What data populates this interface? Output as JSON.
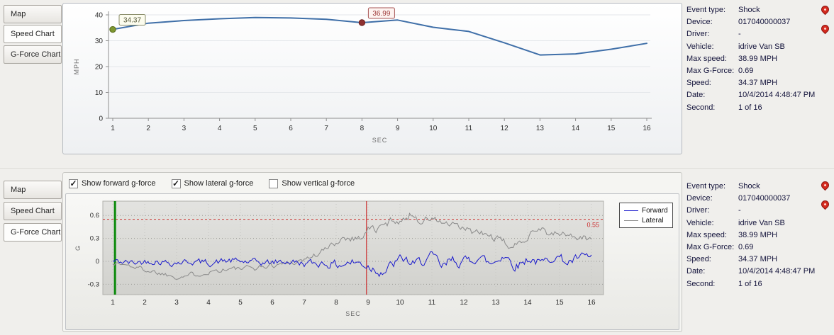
{
  "tabs": {
    "map": "Map",
    "speed": "Speed Chart",
    "gforce": "G-Force Chart"
  },
  "icons": {
    "event_marker": "red-map-pin"
  },
  "checkboxes": [
    {
      "label": "Show forward g-force",
      "checked": true
    },
    {
      "label": "Show lateral g-force",
      "checked": true
    },
    {
      "label": "Show vertical g-force",
      "checked": false
    }
  ],
  "info": {
    "rows": [
      {
        "label": "Event type:",
        "value": "Shock"
      },
      {
        "label": "Device:",
        "value": "017040000037"
      },
      {
        "label": "Driver:",
        "value": "-"
      },
      {
        "label": "Vehicle:",
        "value": "idrive Van SB"
      },
      {
        "label": "Max speed:",
        "value": "38.99 MPH"
      },
      {
        "label": "Max G-Force:",
        "value": "0.69"
      },
      {
        "label": "Speed:",
        "value": "34.37 MPH"
      },
      {
        "label": "Date:",
        "value": "10/4/2014 4:48:47 PM"
      },
      {
        "label": "Second:",
        "value": "1 of 16"
      }
    ]
  },
  "chart_data": [
    {
      "type": "line",
      "title": "Speed Chart",
      "xlabel": "SEC",
      "ylabel": "MPH",
      "x": [
        1,
        2,
        3,
        4,
        5,
        6,
        7,
        8,
        9,
        10,
        11,
        12,
        13,
        14,
        15,
        16
      ],
      "values": [
        34.37,
        36.8,
        37.8,
        38.5,
        38.99,
        38.8,
        38.3,
        36.99,
        38.0,
        35.2,
        33.6,
        29.2,
        24.5,
        24.9,
        26.7,
        29.0
      ],
      "ylim": [
        0,
        40
      ],
      "yticks": [
        0,
        10,
        20,
        30,
        40
      ],
      "line_color": "#3f6fa8",
      "grid": "faint-horizontal",
      "markers": [
        {
          "x": 1,
          "y": 34.37,
          "label": "34.37",
          "dot": "#7d9630",
          "ring": "#5a6e1e",
          "box_bg": "#fcfcee",
          "box_border": "#8a8d6a",
          "text": "#55583a"
        },
        {
          "x": 8,
          "y": 36.99,
          "label": "36.99",
          "dot": "#8e3030",
          "ring": "#6a1f1f",
          "box_bg": "#fdf3f0",
          "box_border": "#a85555",
          "text": "#9c3535"
        }
      ]
    },
    {
      "type": "line",
      "title": "G-Force Chart",
      "xlabel": "SEC",
      "ylabel": "G",
      "xticks": [
        1,
        2,
        3,
        4,
        5,
        6,
        7,
        8,
        9,
        10,
        11,
        12,
        13,
        14,
        15,
        16
      ],
      "ylim": [
        -0.45,
        0.8
      ],
      "yticks": [
        -0.3,
        0,
        0.3,
        0.6
      ],
      "grid": "dotted",
      "legend_position": "right",
      "threshold": {
        "value": 0.55,
        "label": "0.55",
        "color": "#cc3333"
      },
      "event_lines": [
        {
          "x": 1.07,
          "color": "#0b8a0b",
          "width": 3
        },
        {
          "x": 8.95,
          "color": "#cc3333",
          "width": 1.2
        }
      ],
      "series": [
        {
          "name": "Forward",
          "color": "#1a1acc",
          "seed": 42,
          "envelope": [
            [
              1,
              0
            ],
            [
              1.6,
              -0.02
            ],
            [
              2.2,
              0.01
            ],
            [
              2.8,
              -0.02
            ],
            [
              3.4,
              0
            ],
            [
              4,
              -0.02
            ],
            [
              4.6,
              0.01
            ],
            [
              5.2,
              -0.01
            ],
            [
              5.8,
              -0.02
            ],
            [
              6.4,
              0
            ],
            [
              7,
              -0.03
            ],
            [
              7.6,
              -0.02
            ],
            [
              8,
              -0.05
            ],
            [
              8.4,
              -0.01
            ],
            [
              8.8,
              -0.03
            ],
            [
              9.2,
              -0.1
            ],
            [
              9.5,
              -0.13
            ],
            [
              9.8,
              -0.02
            ],
            [
              10.1,
              0.04
            ],
            [
              10.4,
              -0.07
            ],
            [
              10.7,
              0.03
            ],
            [
              11,
              0.05
            ],
            [
              11.3,
              -0.1
            ],
            [
              11.6,
              0.03
            ],
            [
              12,
              -0.02
            ],
            [
              12.4,
              0.08
            ],
            [
              12.8,
              -0.05
            ],
            [
              13.2,
              0.1
            ],
            [
              13.6,
              -0.07
            ],
            [
              14,
              0.05
            ],
            [
              14.4,
              -0.04
            ],
            [
              14.8,
              0.09
            ],
            [
              15.2,
              -0.02
            ],
            [
              15.6,
              0.05
            ],
            [
              16,
              0.06
            ]
          ],
          "noise": [
            [
              1,
              0.045
            ],
            [
              7,
              0.05
            ],
            [
              9,
              0.08
            ],
            [
              12,
              0.08
            ],
            [
              14,
              0.07
            ],
            [
              16,
              0.06
            ]
          ]
        },
        {
          "name": "Lateral",
          "color": "#8a8a8a",
          "seed": 1337,
          "envelope": [
            [
              1,
              -0.02
            ],
            [
              1.5,
              -0.06
            ],
            [
              2,
              -0.11
            ],
            [
              2.5,
              -0.16
            ],
            [
              3,
              -0.2
            ],
            [
              3.5,
              -0.17
            ],
            [
              4,
              -0.13
            ],
            [
              4.5,
              -0.1
            ],
            [
              5,
              -0.1
            ],
            [
              5.5,
              -0.08
            ],
            [
              6,
              -0.05
            ],
            [
              6.5,
              -0.02
            ],
            [
              7,
              0.03
            ],
            [
              7.4,
              0.1
            ],
            [
              7.8,
              0.2
            ],
            [
              8.1,
              0.3
            ],
            [
              8.4,
              0.32
            ],
            [
              8.7,
              0.3
            ],
            [
              9,
              0.45
            ],
            [
              9.2,
              0.4
            ],
            [
              9.5,
              0.48
            ],
            [
              9.8,
              0.56
            ],
            [
              10.1,
              0.52
            ],
            [
              10.3,
              0.64
            ],
            [
              10.6,
              0.52
            ],
            [
              10.9,
              0.56
            ],
            [
              11.2,
              0.52
            ],
            [
              11.5,
              0.47
            ],
            [
              11.8,
              0.44
            ],
            [
              12.1,
              0.4
            ],
            [
              12.5,
              0.36
            ],
            [
              12.9,
              0.31
            ],
            [
              13.2,
              0.24
            ],
            [
              13.5,
              0.18
            ],
            [
              13.8,
              0.26
            ],
            [
              14.1,
              0.42
            ],
            [
              14.4,
              0.44
            ],
            [
              14.7,
              0.33
            ],
            [
              15,
              0.37
            ],
            [
              15.4,
              0.32
            ],
            [
              15.7,
              0.3
            ],
            [
              16,
              0.28
            ]
          ],
          "noise": [
            [
              1,
              0.035
            ],
            [
              7,
              0.04
            ],
            [
              9,
              0.06
            ],
            [
              12,
              0.055
            ],
            [
              16,
              0.05
            ]
          ]
        }
      ]
    }
  ]
}
